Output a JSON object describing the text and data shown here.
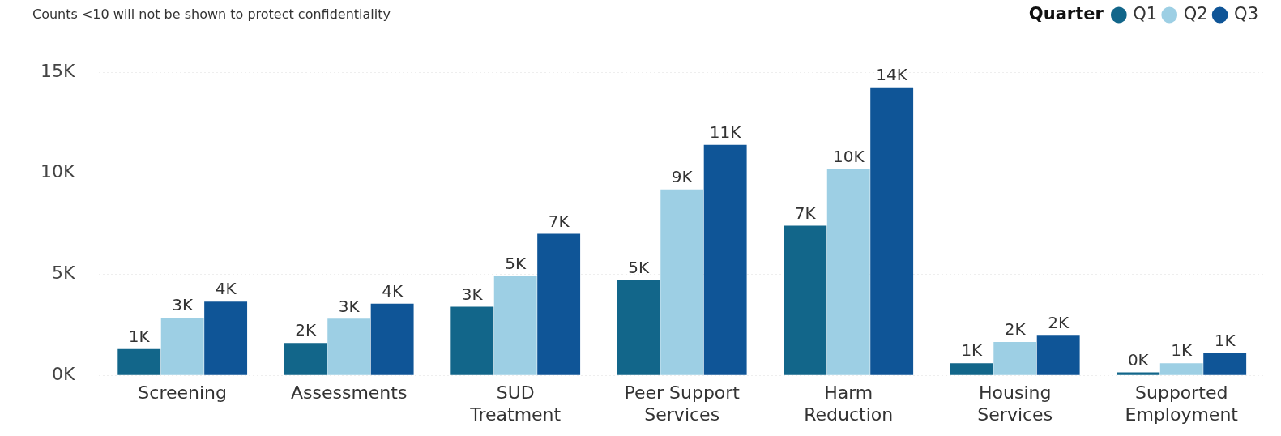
{
  "chart_data": {
    "type": "bar",
    "annotations": [
      "Counts <10 will not be shown to protect confidentiality"
    ],
    "legend_title": "Quarter",
    "categories": [
      "Screening",
      "Assessments",
      "SUD Treatment",
      "Peer Support Services",
      "Harm Reduction",
      "Housing Services",
      "Supported Employment"
    ],
    "series": [
      {
        "name": "Q1",
        "color": "#12668a",
        "values": [
          1.3,
          1.6,
          3.4,
          4.7,
          7.4,
          0.6,
          0.15
        ],
        "value_labels": [
          "1K",
          "2K",
          "3K",
          "5K",
          "7K",
          "1K",
          "0K"
        ]
      },
      {
        "name": "Q2",
        "color": "#9dcfe4",
        "values": [
          2.85,
          2.8,
          4.9,
          9.2,
          10.2,
          1.65,
          0.6
        ],
        "value_labels": [
          "3K",
          "3K",
          "5K",
          "9K",
          "10K",
          "2K",
          "1K"
        ]
      },
      {
        "name": "Q3",
        "color": "#0f5597",
        "values": [
          3.65,
          3.55,
          7.0,
          11.4,
          14.25,
          2.0,
          1.1
        ],
        "value_labels": [
          "4K",
          "4K",
          "7K",
          "11K",
          "14K",
          "2K",
          "1K"
        ]
      }
    ],
    "ylim": [
      0,
      15
    ],
    "yticks": [
      {
        "value": 0,
        "label": "0K"
      },
      {
        "value": 5,
        "label": "5K"
      },
      {
        "value": 10,
        "label": "10K"
      },
      {
        "value": 15,
        "label": "15K"
      }
    ],
    "grid": "y",
    "legend": "top right"
  }
}
